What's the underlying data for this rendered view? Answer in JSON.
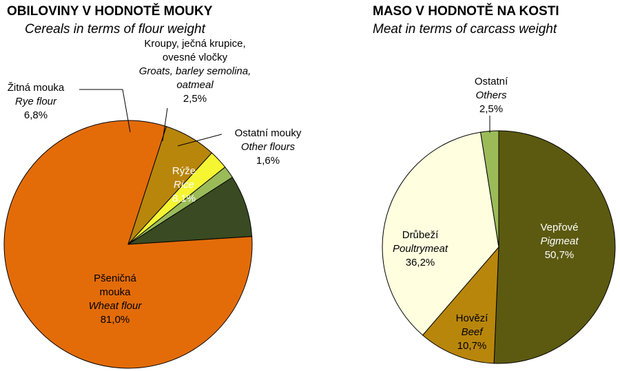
{
  "chart_data": [
    {
      "type": "pie",
      "title": "OBILOVINY V HODNOTĚ MOUKY",
      "subtitle": "Cereals in terms of flour weight",
      "slices": [
        {
          "label_cz": "Rýže",
          "label_en": "Rice",
          "value": 8.1,
          "value_label": "8,1%",
          "color": "#3a4a22"
        },
        {
          "label_cz": "Pšeničná mouka",
          "label_en": "Wheat flour",
          "value": 81.0,
          "value_label": "81,0%",
          "color": "#e36c09"
        },
        {
          "label_cz": "Žitná mouka",
          "label_en": "Rye flour",
          "value": 6.8,
          "value_label": "6,8%",
          "color": "#b8860b"
        },
        {
          "label_cz": "Kroupy, ječná krupice, ovesné vločky",
          "label_en": "Groats, barley semolina, oatmeal",
          "value": 2.5,
          "value_label": "2,5%",
          "color": "#f5f532"
        },
        {
          "label_cz": "Ostatní mouky",
          "label_en": "Other flours",
          "value": 1.6,
          "value_label": "1,6%",
          "color": "#9bbb59"
        }
      ]
    },
    {
      "type": "pie",
      "title": "MASO V HODNOTĚ NA KOSTI",
      "subtitle": "Meat in terms of carcass weight",
      "slices": [
        {
          "label_cz": "Vepřové",
          "label_en": "Pigmeat",
          "value": 50.7,
          "value_label": "50,7%",
          "color": "#5c5a10"
        },
        {
          "label_cz": "Hovězí",
          "label_en": "Beef",
          "value": 10.7,
          "value_label": "10,7%",
          "color": "#b8860b"
        },
        {
          "label_cz": "Drůbeží",
          "label_en": "Poultrymeat",
          "value": 36.2,
          "value_label": "36,2%",
          "color": "#ffffe0"
        },
        {
          "label_cz": "Ostatní",
          "label_en": "Others",
          "value": 2.5,
          "value_label": "2,5%",
          "color": "#9bbb59"
        }
      ]
    }
  ]
}
